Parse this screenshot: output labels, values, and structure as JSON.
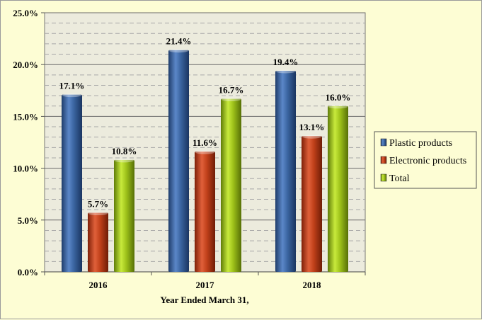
{
  "chart_data": {
    "type": "bar",
    "categories": [
      "2016",
      "2017",
      "2018"
    ],
    "series": [
      {
        "name": "Plastic products",
        "values": [
          17.1,
          21.4,
          19.4
        ],
        "labels": [
          "17.1%",
          "21.4%",
          "19.4%"
        ],
        "color": "#3a64a0"
      },
      {
        "name": "Electronic products",
        "values": [
          5.7,
          11.6,
          13.1
        ],
        "labels": [
          "5.7%",
          "11.6%",
          "13.1%"
        ],
        "color": "#c0401a"
      },
      {
        "name": "Total",
        "values": [
          10.8,
          16.7,
          16.0
        ],
        "labels": [
          "10.8%",
          "16.7%",
          "16.0%"
        ],
        "color": "#9ec21a"
      }
    ],
    "xlabel": "Year Ended March 31,",
    "ylabel": "",
    "ylim": [
      0,
      25
    ],
    "yticks": [
      0,
      5,
      10,
      15,
      20,
      25
    ],
    "ytick_labels": [
      "0.0%",
      "5.0%",
      "10.0%",
      "15.0%",
      "20.0%",
      "25.0%"
    ],
    "grid": true,
    "legend_position": "right",
    "plot_background": "#ecebdd",
    "page_background": "#fdfdd4"
  }
}
